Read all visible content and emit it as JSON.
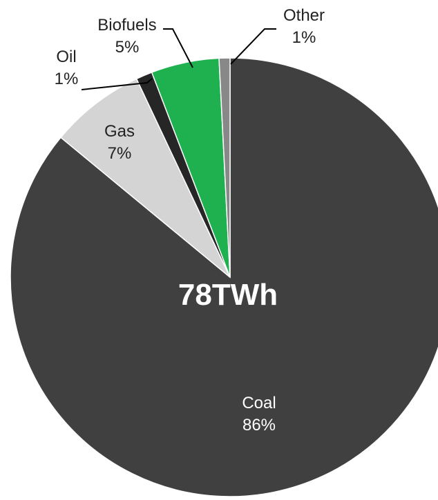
{
  "chart_data": {
    "type": "pie",
    "title": "",
    "center_label": "78TWh",
    "slices": [
      {
        "name": "Coal",
        "percent_label": "86%",
        "value": 86,
        "color": "#404040"
      },
      {
        "name": "Gas",
        "percent_label": "7%",
        "value": 7,
        "color": "#d4d4d4"
      },
      {
        "name": "Oil",
        "percent_label": "1%",
        "value": 1.2,
        "color": "#262626"
      },
      {
        "name": "Biofuels",
        "percent_label": "5%",
        "value": 5,
        "color": "#1fb14f"
      },
      {
        "name": "Other",
        "percent_label": "1%",
        "value": 0.8,
        "color": "#888888"
      }
    ],
    "start": "12 o'clock",
    "direction": "clockwise, starting with Coal"
  }
}
